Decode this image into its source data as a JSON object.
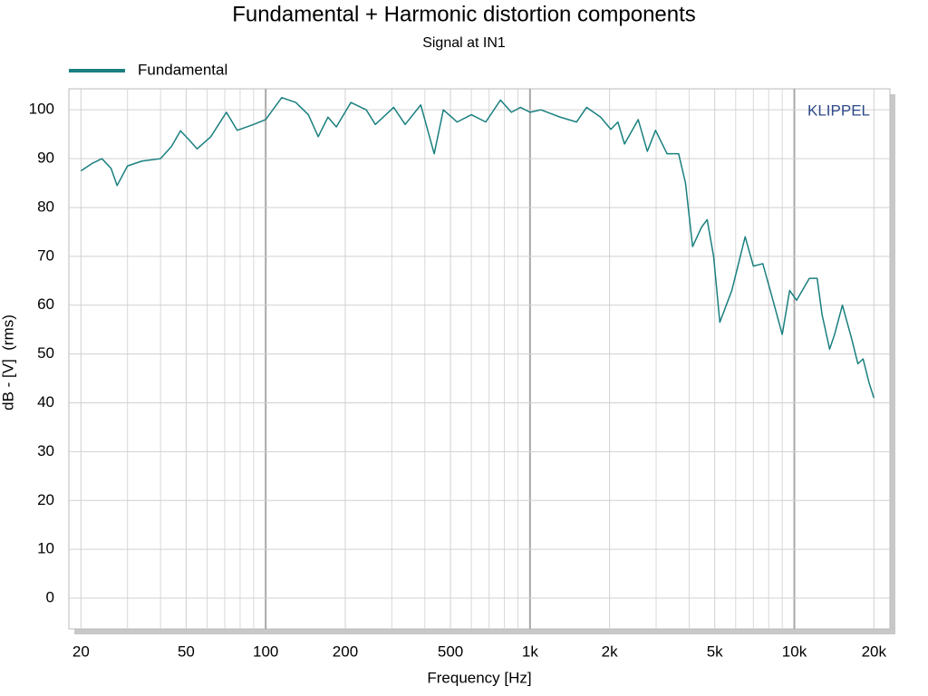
{
  "chart_data": {
    "type": "line",
    "title": "Fundamental + Harmonic distortion components",
    "subtitle": "Signal at IN1",
    "watermark": "KLIPPEL",
    "xlabel": "Frequency [Hz]",
    "ylabel": "dB - [V]  (rms)",
    "xscale": "log",
    "grid": true,
    "legend": "top-left",
    "xlim": [
      18,
      23000
    ],
    "ylim": [
      -6.3,
      104.3
    ],
    "xticks": [
      20,
      50,
      100,
      200,
      500,
      {
        "value": 1000,
        "label": "1k"
      },
      {
        "value": 2000,
        "label": "2k"
      },
      {
        "value": 5000,
        "label": "5k"
      },
      {
        "value": 10000,
        "label": "10k"
      },
      {
        "value": 20000,
        "label": "20k"
      }
    ],
    "minor_xticks": [
      30,
      40,
      60,
      70,
      80,
      90,
      300,
      400,
      600,
      700,
      800,
      900,
      3000,
      4000,
      6000,
      7000,
      8000,
      9000
    ],
    "yticks": [
      0,
      10,
      20,
      30,
      40,
      50,
      60,
      70,
      80,
      90,
      100
    ],
    "x": [
      20,
      22,
      24,
      26,
      27.4,
      30,
      34,
      40,
      44,
      47.6,
      51,
      55,
      62,
      71,
      78,
      90,
      100,
      115,
      130,
      145,
      158,
      172,
      185,
      210,
      240,
      260,
      305,
      337,
      386,
      434,
      470,
      530,
      600,
      680,
      773,
      850,
      920,
      1000,
      1100,
      1300,
      1500,
      1637,
      1850,
      2023,
      2150,
      2278,
      2566,
      2778,
      2985,
      3300,
      3650,
      3875,
      4122,
      4460,
      4680,
      4950,
      5225,
      5800,
      6516,
      7000,
      7600,
      8300,
      9000,
      9600,
      10200,
      11400,
      12200,
      12740,
      13600,
      14200,
      15200,
      16500,
      17400,
      18200,
      19200,
      20000
    ],
    "series": [
      {
        "name": "Fundamental",
        "color": "#1a7f7f",
        "values": [
          87.5,
          89,
          90,
          88,
          84.5,
          88.5,
          89.5,
          90,
          92.5,
          95.7,
          94,
          92,
          94.5,
          99.5,
          95.8,
          97,
          98,
          102.5,
          101.5,
          99,
          94.5,
          98.5,
          96.5,
          101.5,
          100,
          97,
          100.5,
          97,
          101,
          91,
          100,
          97.5,
          99,
          97.5,
          102,
          99.5,
          100.5,
          99.5,
          100,
          98.5,
          97.5,
          100.5,
          98.5,
          96,
          97.5,
          93,
          98,
          91.5,
          95.8,
          91,
          91,
          85,
          72,
          76,
          77.5,
          70,
          56.5,
          63,
          74,
          68,
          68.5,
          61,
          54,
          63,
          61,
          65.5,
          65.5,
          58,
          51,
          54,
          60,
          53,
          48,
          49,
          44,
          41
        ]
      }
    ]
  }
}
